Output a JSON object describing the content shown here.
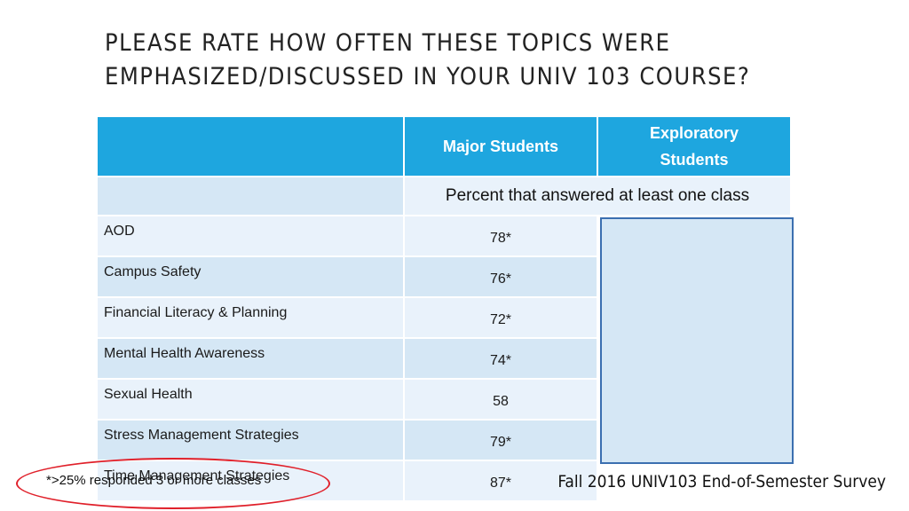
{
  "title": {
    "line1": "PLEASE RATE HOW OFTEN THESE TOPICS WERE",
    "line2": "EMPHASIZED/DISCUSSED IN YOUR UNIV 103 COURSE?"
  },
  "table": {
    "headers": {
      "topic": "",
      "major": "Major Students",
      "exploratory_line1": "Exploratory",
      "exploratory_line2": "Students"
    },
    "subheader": "Percent that answered at least one class",
    "rows": [
      {
        "topic": "AOD",
        "major": "78*"
      },
      {
        "topic": "Campus Safety",
        "major": "76*"
      },
      {
        "topic": "Financial Literacy & Planning",
        "major": "72*"
      },
      {
        "topic": "Mental Health Awareness",
        "major": "74*"
      },
      {
        "topic": "Sexual Health",
        "major": "58"
      },
      {
        "topic": "Stress Management Strategies",
        "major": "79*"
      },
      {
        "topic": "Time Management Strategies",
        "major": "87*"
      }
    ]
  },
  "footnote": "*>25% responded 3 or more classes",
  "source": "Fall 2016 UNIV103 End-of-Semester Survey",
  "colors": {
    "header": "#1ea6df",
    "row_dark": "#d5e7f5",
    "row_light": "#e9f2fb",
    "highlight_oval": "#e0202a",
    "cover_border": "#3b6fb0"
  }
}
